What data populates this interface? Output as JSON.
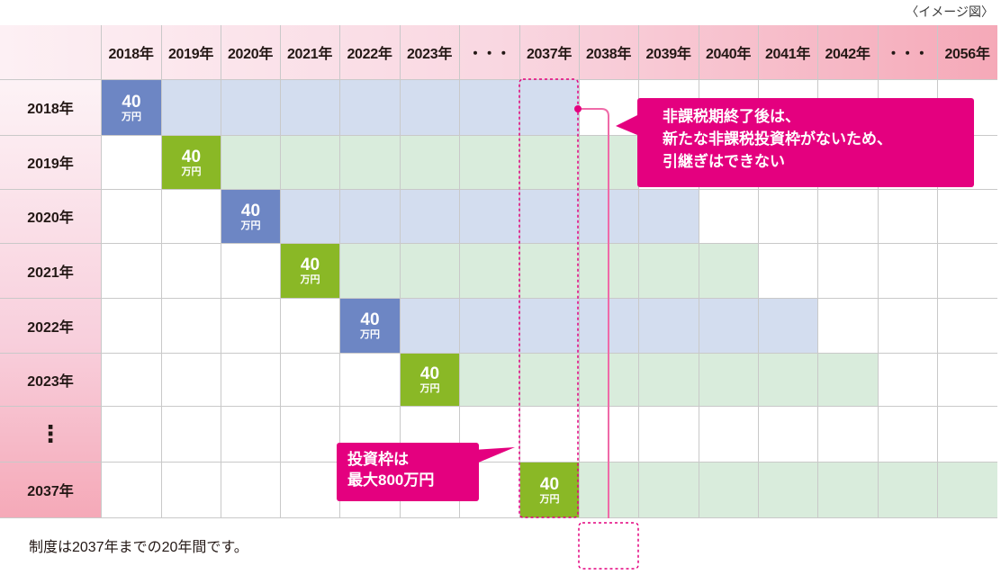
{
  "note": "〈イメージ図〉",
  "columns": [
    "2018年",
    "2019年",
    "2020年",
    "2021年",
    "2022年",
    "2023年",
    "・・・",
    "2037年",
    "2038年",
    "2039年",
    "2040年",
    "2041年",
    "2042年",
    "・・・",
    "2056年"
  ],
  "rows": [
    "2018年",
    "2019年",
    "2020年",
    "2021年",
    "2022年",
    "2023年",
    "⋮",
    "2037年"
  ],
  "contributions": [
    {
      "row": 0,
      "start_col": 0,
      "end_col": 7,
      "color": "blue"
    },
    {
      "row": 1,
      "start_col": 1,
      "end_col": 8,
      "color": "green"
    },
    {
      "row": 2,
      "start_col": 2,
      "end_col": 9,
      "color": "blue"
    },
    {
      "row": 3,
      "start_col": 3,
      "end_col": 10,
      "color": "green"
    },
    {
      "row": 4,
      "start_col": 4,
      "end_col": 11,
      "color": "blue"
    },
    {
      "row": 5,
      "start_col": 5,
      "end_col": 12,
      "color": "green"
    },
    {
      "row": 7,
      "start_col": 7,
      "end_col": 14,
      "color": "green"
    }
  ],
  "contribution_amount": "40",
  "contribution_unit": "万円",
  "callout_main": {
    "line1": "非課税期終了後は、",
    "line2": "新たな非課税投資枠がないため、",
    "line3": "引継ぎはできない"
  },
  "callout_cap": {
    "line1": "投資枠は",
    "line2": "最大800万円"
  },
  "footer": "制度は2037年までの20年間です。",
  "colors": {
    "blue_block": "#6d86c4",
    "blue_bar": "#d3ddef",
    "green_block": "#8ab826",
    "green_bar": "#d9ecdc",
    "magenta": "#e4007f",
    "pink_line": "#ef6aa8",
    "header_gradient_start": "#fdf0f4",
    "header_gradient_end": "#f5a9b8"
  }
}
